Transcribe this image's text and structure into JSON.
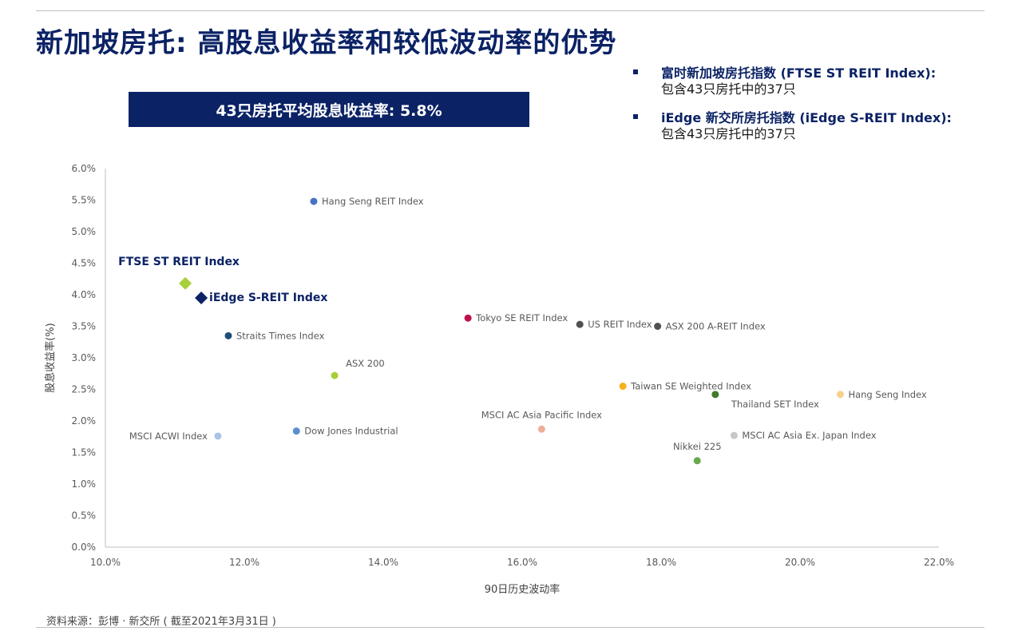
{
  "page": {
    "title": "新加坡房托: 高股息收益率和较低波动率的优势",
    "banner": "43只房托平均股息收益率: 5.8%",
    "notes": [
      {
        "head": "富时新加坡房托指数 (FTSE ST REIT Index):",
        "sub": "包含43只房托中的37只"
      },
      {
        "head": "iEdge 新交所房托指数 (iEdge S-REIT Index):",
        "sub": "包含43只房托中的37只"
      }
    ],
    "source": "资料来源：彭博 · 新交所 ( 截至2021年3月31日 )"
  },
  "chart_data": {
    "type": "scatter",
    "xlabel": "90日历史波动率",
    "ylabel": "股息收益率(%)",
    "xlim": [
      10.0,
      22.0
    ],
    "ylim": [
      0.0,
      6.0
    ],
    "x_ticks": [
      "10.0%",
      "12.0%",
      "14.0%",
      "16.0%",
      "18.0%",
      "20.0%",
      "22.0%"
    ],
    "y_ticks": [
      "0.0%",
      "0.5%",
      "1.0%",
      "1.5%",
      "2.0%",
      "2.5%",
      "3.0%",
      "3.5%",
      "4.0%",
      "4.5%",
      "5.0%",
      "5.5%",
      "6.0%"
    ],
    "grid": false,
    "points": [
      {
        "name": "Hang Seng REIT Index",
        "x": 13.0,
        "y": 5.48,
        "color": "#4a72c4",
        "label_side": "right"
      },
      {
        "name": "FTSE ST REIT Index",
        "x": 11.15,
        "y": 4.18,
        "color": "#a8cf3b",
        "marker": "diamond",
        "highlight": true,
        "label_side": "above-left"
      },
      {
        "name": "iEdge S-REIT Index",
        "x": 11.38,
        "y": 3.95,
        "color": "#0b2265",
        "marker": "diamond",
        "highlight": true,
        "label_side": "right"
      },
      {
        "name": "Straits Times Index",
        "x": 11.77,
        "y": 3.35,
        "color": "#1f4e79",
        "label_side": "right"
      },
      {
        "name": "ASX 200",
        "x": 13.3,
        "y": 2.72,
        "color": "#a8cf3b",
        "label_side": "above-right"
      },
      {
        "name": "Dow Jones Industrial",
        "x": 12.75,
        "y": 1.84,
        "color": "#5b8fd1",
        "label_side": "right"
      },
      {
        "name": "MSCI ACWI Index",
        "x": 11.62,
        "y": 1.76,
        "color": "#a9c4e6",
        "label_side": "left"
      },
      {
        "name": "Tokyo SE REIT Index",
        "x": 15.22,
        "y": 3.63,
        "color": "#c0104f",
        "label_side": "right"
      },
      {
        "name": "US REIT Index",
        "x": 16.83,
        "y": 3.53,
        "color": "#505050",
        "label_side": "right"
      },
      {
        "name": "ASX 200 A-REIT Index",
        "x": 17.95,
        "y": 3.5,
        "color": "#505050",
        "label_side": "right"
      },
      {
        "name": "Taiwan SE Weighted Index",
        "x": 17.45,
        "y": 2.55,
        "color": "#f5b21c",
        "label_side": "right"
      },
      {
        "name": "Thailand SET Index",
        "x": 18.78,
        "y": 2.42,
        "color": "#3f7a2d",
        "label_side": "below-right"
      },
      {
        "name": "Hang Seng Index",
        "x": 20.58,
        "y": 2.42,
        "color": "#f8d08a",
        "label_side": "right"
      },
      {
        "name": "MSCI AC Asia Pacific Index",
        "x": 16.28,
        "y": 1.87,
        "color": "#f0ad9a",
        "label_side": "above"
      },
      {
        "name": "MSCI AC Asia Ex. Japan Index",
        "x": 19.05,
        "y": 1.77,
        "color": "#c8c8c8",
        "label_side": "right"
      },
      {
        "name": "Nikkei 225",
        "x": 18.52,
        "y": 1.37,
        "color": "#6aa84f",
        "label_side": "above"
      }
    ]
  }
}
